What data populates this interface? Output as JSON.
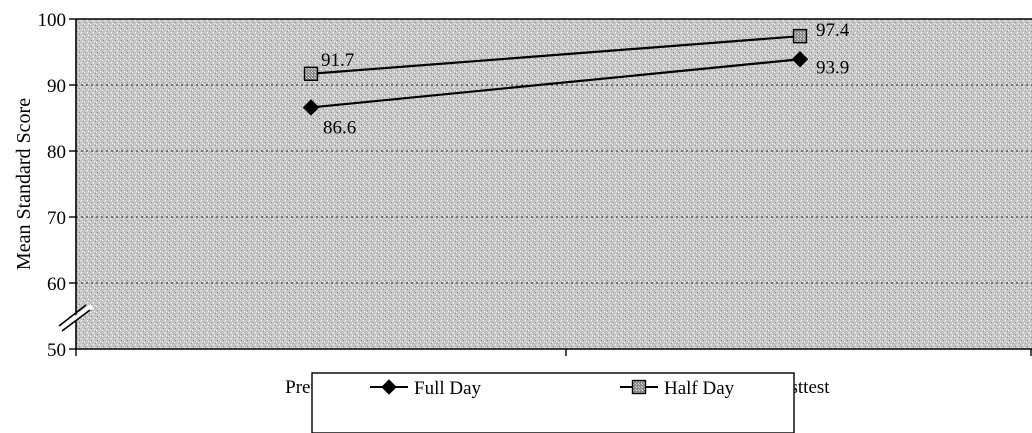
{
  "chart_data": {
    "type": "line",
    "title": "",
    "ylabel": "Mean Standard Score",
    "xlabel": "",
    "categories": [
      "Pretest",
      "Posttest"
    ],
    "ylim": [
      50,
      100
    ],
    "yticks": [
      50,
      60,
      70,
      80,
      90,
      100
    ],
    "grid": true,
    "y_axis_break": true,
    "legend_position": "bottom",
    "series": [
      {
        "name": "Full Day",
        "values": [
          86.6,
          93.9
        ],
        "labels": [
          "86.6",
          "93.9"
        ],
        "marker": "diamond",
        "color": "#000000"
      },
      {
        "name": "Half Day",
        "values": [
          91.7,
          97.4
        ],
        "labels": [
          "91.7",
          "97.4"
        ],
        "marker": "square",
        "color": "#9a9a9a"
      }
    ],
    "plot_background": "#c8c8c8"
  }
}
